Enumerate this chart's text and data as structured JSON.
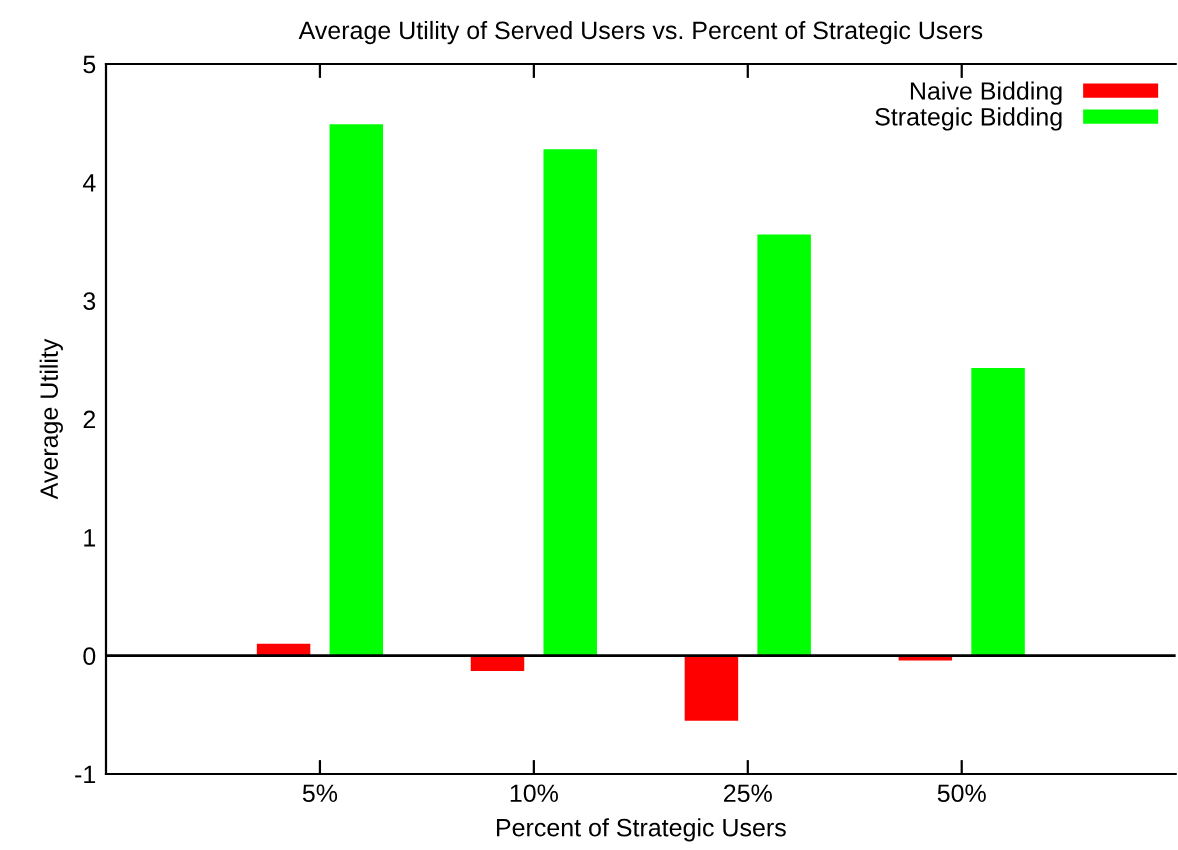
{
  "chart_data": {
    "type": "bar",
    "title": "Average Utility of Served Users vs. Percent of Strategic Users",
    "xlabel": "Percent of Strategic Users",
    "ylabel": "Average Utility",
    "categories": [
      "5%",
      "10%",
      "25%",
      "50%"
    ],
    "series": [
      {
        "name": "Naive Bidding",
        "color": "#ff0000",
        "values": [
          0.1,
          -0.13,
          -0.55,
          -0.04
        ]
      },
      {
        "name": "Strategic Bidding",
        "color": "#00ff00",
        "values": [
          4.49,
          4.28,
          3.56,
          2.43
        ]
      }
    ],
    "ylim": [
      -1,
      5
    ],
    "yticks": [
      -1,
      0,
      1,
      2,
      3,
      4,
      5
    ],
    "ref_lines": [
      {
        "axis": "y",
        "value": 0,
        "color": "#000000"
      }
    ],
    "grid": false,
    "legend": "top right"
  }
}
